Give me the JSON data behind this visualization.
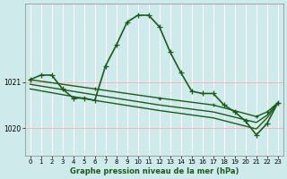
{
  "background_color": "#ceeaea",
  "grid_color": "#f0f0f0",
  "line_color": "#1a5c1a",
  "xlabel": "Graphe pression niveau de la mer (hPa)",
  "ylim": [
    1019.4,
    1022.7
  ],
  "xlim": [
    -0.5,
    23.5
  ],
  "yticks": [
    1020,
    1021
  ],
  "xticks": [
    0,
    1,
    2,
    3,
    4,
    5,
    6,
    7,
    8,
    9,
    10,
    11,
    12,
    13,
    14,
    15,
    16,
    17,
    18,
    19,
    20,
    21,
    22,
    23
  ],
  "series": [
    {
      "x": [
        0,
        1,
        2,
        3,
        4,
        5,
        6,
        7,
        8,
        9,
        10,
        11,
        12,
        13,
        14,
        15,
        16,
        17,
        18,
        19,
        20,
        21,
        22,
        23
      ],
      "y": [
        1021.05,
        1021.15,
        1021.15,
        1020.85,
        1020.65,
        1020.65,
        1020.6,
        1021.35,
        1021.8,
        1022.3,
        1022.45,
        1022.45,
        1022.2,
        1021.65,
        1021.2,
        1020.8,
        1020.75,
        1020.75,
        1020.5,
        1020.35,
        1020.15,
        1019.85,
        1020.1,
        1020.55
      ],
      "marker": "+",
      "linewidth": 1.2,
      "markersize": 4.5
    },
    {
      "x": [
        0,
        6,
        12,
        17,
        21,
        22,
        23
      ],
      "y": [
        1021.05,
        1020.85,
        1020.65,
        1020.5,
        1020.25,
        1020.35,
        1020.55
      ],
      "marker": "+",
      "linewidth": 1.0,
      "markersize": 3.5
    },
    {
      "x": [
        0,
        6,
        12,
        17,
        21,
        22,
        23
      ],
      "y": [
        1020.95,
        1020.72,
        1020.5,
        1020.35,
        1020.12,
        1020.28,
        1020.55
      ],
      "marker": null,
      "linewidth": 1.0,
      "markersize": 0
    },
    {
      "x": [
        0,
        6,
        12,
        17,
        21,
        22,
        23
      ],
      "y": [
        1020.85,
        1020.6,
        1020.38,
        1020.22,
        1019.98,
        1020.22,
        1020.55
      ],
      "marker": null,
      "linewidth": 1.0,
      "markersize": 0
    }
  ]
}
